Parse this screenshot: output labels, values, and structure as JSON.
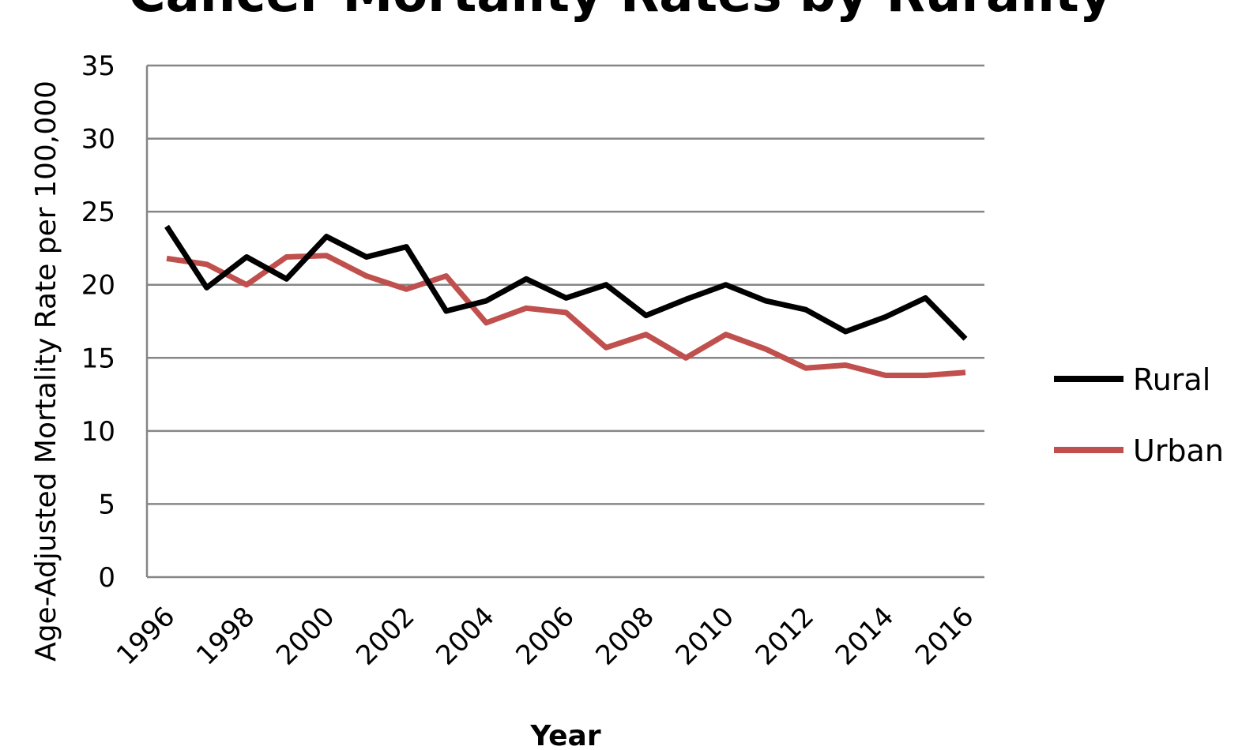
{
  "chart_data": {
    "type": "line",
    "title": "Cancer Mortality Rates by Rurality",
    "xlabel": "Year",
    "ylabel": "Age-Adjusted Mortality Rate per 100,000",
    "ylim": [
      0,
      35
    ],
    "yticks": [
      0,
      5,
      10,
      15,
      20,
      25,
      30,
      35
    ],
    "x": [
      1996,
      1997,
      1998,
      1999,
      2000,
      2001,
      2002,
      2003,
      2004,
      2005,
      2006,
      2007,
      2008,
      2009,
      2010,
      2011,
      2012,
      2013,
      2014,
      2015,
      2016
    ],
    "xtick_labels": [
      "1996",
      "1998",
      "2000",
      "2002",
      "2004",
      "2006",
      "2008",
      "2010",
      "2012",
      "2014",
      "2016"
    ],
    "grid": true,
    "legend_position": "right",
    "series": [
      {
        "name": "Rural",
        "color": "#000000",
        "values": [
          24.0,
          19.8,
          21.9,
          20.4,
          23.3,
          21.9,
          22.6,
          18.2,
          18.9,
          20.4,
          19.1,
          20.0,
          17.9,
          19.0,
          20.0,
          18.9,
          18.3,
          16.8,
          17.8,
          19.1,
          16.3
        ]
      },
      {
        "name": "Urban",
        "color": "#c0504d",
        "values": [
          21.8,
          21.4,
          20.0,
          21.9,
          22.0,
          20.6,
          19.7,
          20.6,
          17.4,
          18.4,
          18.1,
          15.7,
          16.6,
          15.0,
          16.6,
          15.6,
          14.3,
          14.5,
          13.8,
          13.8,
          14.0
        ]
      }
    ]
  }
}
